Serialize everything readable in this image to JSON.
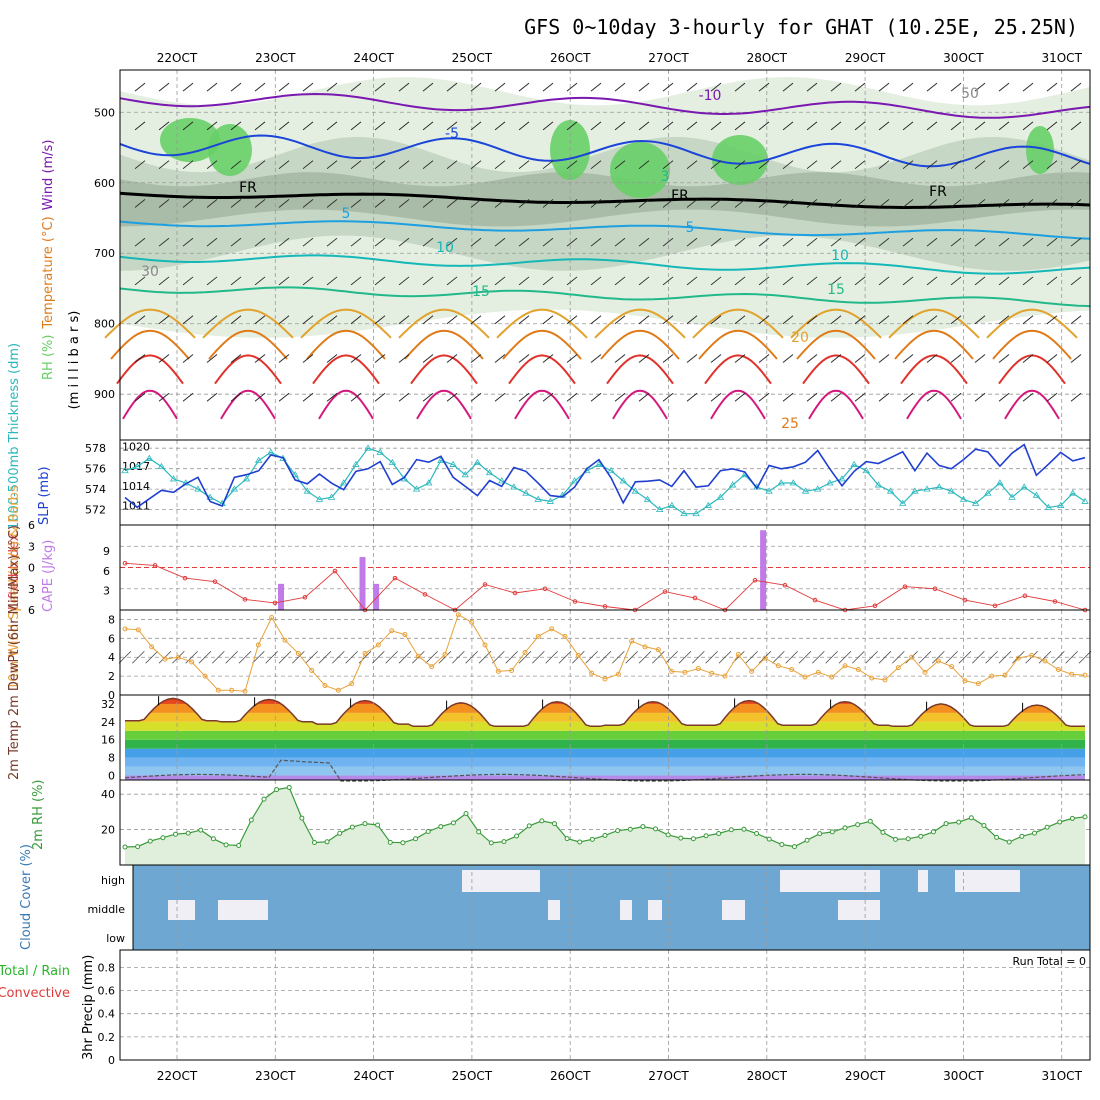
{
  "title": "GFS 0~10day 3-hourly for GHAT (10.25E, 25.25N)",
  "dates": [
    "22OCT",
    "23OCT",
    "24OCT",
    "25OCT",
    "26OCT",
    "27OCT",
    "28OCT",
    "29OCT",
    "30OCT",
    "31OCT"
  ],
  "colors": {
    "rh_light": "#e4efe1",
    "rh_mid": "#c6d7c5",
    "rh_dark": "#a9bca8",
    "rh_green": "#67cf67",
    "temp_purple": "#7a18b0",
    "temp_blue": "#1b45d8",
    "temp_lightblue": "#1d9fe0",
    "temp_teal": "#15b7b7",
    "temp_green": "#22b98a",
    "temp_orange1": "#e2a22e",
    "temp_orange2": "#e07b1a",
    "temp_red": "#e0322a",
    "temp_magenta": "#d4197d",
    "slp": "#1f3fd1",
    "thickness": "#2ab8bd",
    "cape": "#c07be8",
    "lifted_index": "#e03a3a",
    "wind": "#e8a23a",
    "rh2m": "#3a9a3a",
    "cloud_bg": "#6ea8d2",
    "cloud_fill": "#f1eff6"
  },
  "chart_data": [
    {
      "type": "contour",
      "panel": "upper-air",
      "ylabel_parts": [
        "RH (%)",
        "Temperature (°C)",
        "Wind (m/s)"
      ],
      "ylabel_axis": "(m i l l i b a r s)",
      "yticks": [
        "500",
        "600",
        "700",
        "800",
        "900"
      ],
      "ylim": [
        965,
        440
      ],
      "contour_labels": [
        "-10",
        "-5",
        "5",
        "5",
        "10",
        "10",
        "15",
        "15",
        "20",
        "25",
        "FR",
        "FR",
        "FR",
        "3",
        "30",
        "50"
      ]
    },
    {
      "type": "line",
      "panel": "slp-thickness",
      "left_ylabel": "1000-500mb Thickness (dm)",
      "right_ylabel": "SLP (mb)",
      "left_ticks": [
        "578",
        "576",
        "574",
        "572"
      ],
      "right_ticks": [
        "1020",
        "1017",
        "1014",
        "1011"
      ],
      "series": [
        {
          "name": "SLP",
          "unit": "mb",
          "values": [
            1012.2,
            1010.7,
            1012.0,
            1013.3,
            1013.0,
            1014.3,
            1015.3,
            1011.6,
            1010.9,
            1015.3,
            1015.7,
            1016.3,
            1018.7,
            1018.3,
            1014.9,
            1014.3,
            1015.8,
            1014.4,
            1013.4,
            1016.2,
            1016.6,
            1017.7,
            1014.2,
            1015.3,
            1018.0,
            1017.6,
            1018.5,
            1015.3,
            1013.9,
            1012.5,
            1014.8,
            1013.9,
            1016.8,
            1016.2,
            1014.4,
            1012.5,
            1012.3,
            1013.8,
            1016.6,
            1018.0,
            1015.2,
            1011.4,
            1014.6,
            1014.7,
            1014.9,
            1013.9,
            1016.3,
            1013.8,
            1014.0,
            1016.3,
            1016.6,
            1016.1,
            1013.6,
            1017.1,
            1016.6,
            1016.9,
            1017.6,
            1019.4,
            1016.6,
            1014.0,
            1016.2,
            1017.7,
            1017.4,
            1018.3,
            1019.2,
            1016.3,
            1019.0,
            1017.1,
            1016.6,
            1018.0,
            1019.6,
            1019.2,
            1017.0,
            1019.0,
            1020.3,
            1015.6,
            1017.3,
            1019.1,
            1017.8,
            1018.3
          ]
        },
        {
          "name": "Thickness",
          "unit": "dm",
          "values": [
            575.8,
            576.2,
            577.0,
            576.2,
            575.0,
            574.6,
            574.0,
            573.2,
            572.6,
            574.0,
            575.0,
            576.8,
            577.6,
            577.0,
            575.4,
            573.8,
            573.0,
            573.2,
            574.6,
            576.4,
            578.0,
            577.6,
            576.6,
            575.0,
            574.0,
            574.6,
            576.8,
            576.4,
            575.4,
            576.6,
            575.6,
            574.8,
            574.2,
            573.6,
            573.0,
            572.8,
            573.4,
            574.8,
            575.8,
            576.4,
            575.8,
            574.8,
            573.8,
            573.0,
            572.0,
            572.4,
            571.6,
            571.6,
            572.4,
            573.2,
            574.4,
            575.4,
            574.2,
            573.8,
            574.6,
            574.6,
            573.8,
            574.0,
            574.6,
            575.0,
            576.4,
            575.8,
            574.4,
            573.8,
            572.6,
            573.8,
            574.0,
            574.2,
            573.8,
            573.0,
            572.6,
            573.6,
            574.6,
            573.2,
            574.2,
            573.4,
            572.2,
            572.4,
            573.6,
            572.8
          ]
        }
      ]
    },
    {
      "type": "bar",
      "panel": "cape-li",
      "left_ylabel": "Lifted Index",
      "right_ylabel": "CAPE (J/kg)",
      "li_ticks": [
        "-6",
        "-3",
        "0",
        "3",
        "6"
      ],
      "cape_ticks": [
        "9",
        "6",
        "3"
      ],
      "cape_values": [
        {
          "x": 16.6,
          "cape": 4.0
        },
        {
          "x": 25.0,
          "cape": 8.1
        },
        {
          "x": 26.4,
          "cape": 4.0
        },
        {
          "x": 66.3,
          "cape": 12.2
        }
      ],
      "lifted_index": [
        -0.6,
        -0.3,
        1.5,
        2.0,
        4.5,
        5.0,
        4.2,
        0.5,
        6.5,
        1.5,
        3.8,
        6.5,
        2.4,
        3.6,
        3.0,
        4.8,
        5.5,
        6.5,
        3.4,
        4.3,
        6.4,
        1.8,
        2.5,
        4.6,
        6.5,
        5.4,
        2.7,
        3.0,
        4.6,
        5.4,
        4.0,
        4.8,
        6.5
      ]
    },
    {
      "type": "line",
      "panel": "wind10m",
      "ylabel": "10m Wind Speed (m/s) & Barbs",
      "yticks": [
        "8",
        "6",
        "4",
        "2",
        "0"
      ],
      "values": [
        7.0,
        6.9,
        5.1,
        3.8,
        4.0,
        3.5,
        2.0,
        0.5,
        0.5,
        0.4,
        5.3,
        8.2,
        5.8,
        4.4,
        2.6,
        1.0,
        0.5,
        1.2,
        4.4,
        5.3,
        6.8,
        6.4,
        4.1,
        3.0,
        4.3,
        8.5,
        7.7,
        5.3,
        2.5,
        2.6,
        4.5,
        6.2,
        7.0,
        6.2,
        4.2,
        2.3,
        1.7,
        2.2,
        5.7,
        5.1,
        4.8,
        2.5,
        2.4,
        2.8,
        2.3,
        2.0,
        4.3,
        2.5,
        3.9,
        3.1,
        2.7,
        1.9,
        2.4,
        1.9,
        3.1,
        2.7,
        1.8,
        1.6,
        2.9,
        4.0,
        2.4,
        3.6,
        3.0,
        1.5,
        1.2,
        2.0,
        2.1,
        3.9,
        4.2,
        3.6,
        2.7,
        2.2,
        2.1
      ]
    },
    {
      "type": "area",
      "panel": "temp2m",
      "ylabel": "2m Temp 2m DewPt (6hr Min/Max) (°C)",
      "yticks": [
        "32",
        "24",
        "16",
        "8",
        "0"
      ],
      "temperature_peaks": [
        34.5,
        34.0,
        33.5,
        32.5,
        33.0,
        33.0,
        33.5,
        33.0,
        32.0,
        31.5
      ],
      "temperature_troughs": [
        24.5,
        24.0,
        23.0,
        22.0,
        22.0,
        22.5,
        22.5,
        22.5,
        22.0,
        22.0
      ],
      "dewpoint_range": [
        -2,
        8
      ]
    },
    {
      "type": "area",
      "panel": "rh2m",
      "ylabel": "2m RH (%)",
      "yticks": [
        "40",
        "20"
      ],
      "values": [
        10.2,
        10.4,
        13.5,
        15.4,
        17.4,
        18.0,
        19.7,
        14.8,
        11.4,
        11.0,
        25.4,
        37.2,
        42.6,
        43.8,
        26.5,
        12.7,
        13.1,
        17.9,
        21.4,
        23.4,
        22.6,
        12.8,
        12.6,
        14.8,
        18.9,
        21.7,
        23.8,
        29.1,
        18.7,
        12.5,
        13.2,
        16.4,
        22.1,
        24.9,
        23.4,
        14.9,
        13.0,
        14.5,
        16.7,
        19.4,
        20.2,
        21.7,
        20.4,
        17.0,
        15.2,
        14.8,
        16.5,
        17.8,
        19.9,
        20.2,
        17.8,
        14.6,
        11.6,
        10.4,
        14.0,
        17.7,
        18.7,
        21.0,
        22.8,
        24.7,
        18.4,
        14.5,
        14.8,
        16.2,
        18.7,
        23.4,
        24.2,
        26.7,
        22.3,
        15.6,
        13.0,
        16.2,
        18.0,
        21.3,
        24.3,
        26.3,
        27.2
      ]
    },
    {
      "type": "heatmap",
      "panel": "cloud",
      "ylabel": "Cloud Cover (%)",
      "row_labels": [
        "high",
        "middle",
        "low"
      ]
    },
    {
      "type": "bar",
      "panel": "precip",
      "ylabel_total": "Total / Rain",
      "ylabel_conv": "Convective",
      "ylabel_axis": "3hr Precip (mm)",
      "yticks": [
        "0.8",
        "0.6",
        "0.4",
        "0.2",
        "0"
      ],
      "run_total": "Run Total = 0",
      "values": []
    }
  ]
}
